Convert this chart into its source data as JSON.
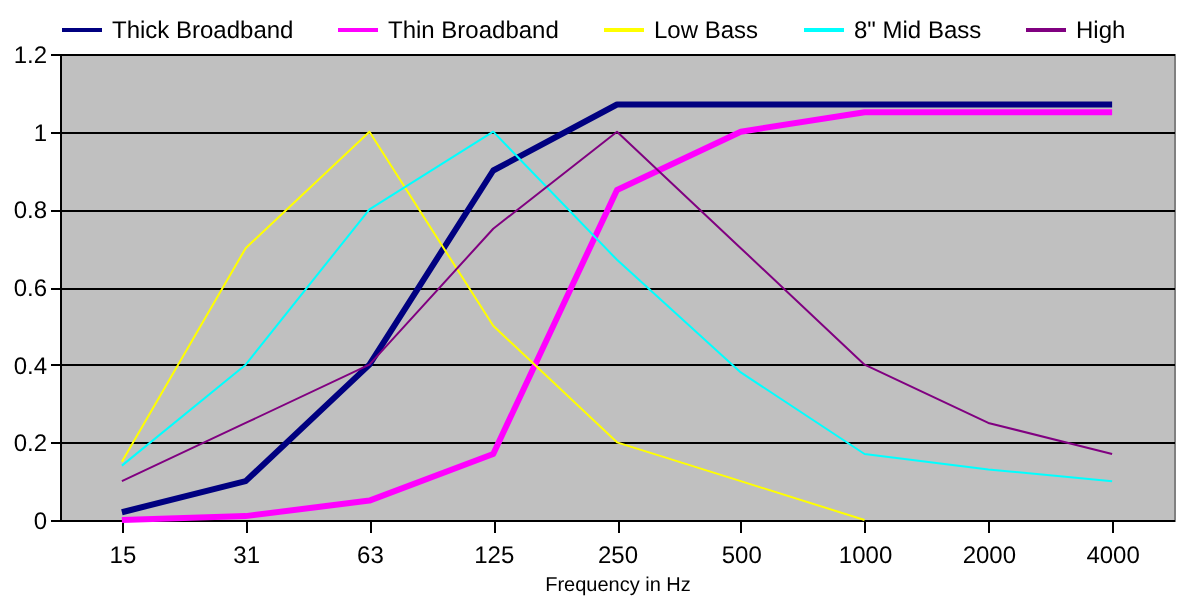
{
  "chart_data": {
    "type": "line",
    "xlabel": "Frequency in Hz",
    "categories": [
      "15",
      "31",
      "63",
      "125",
      "250",
      "500",
      "1000",
      "2000",
      "4000"
    ],
    "series": [
      {
        "name": "Thick Broadband",
        "color": "#000080",
        "values": [
          0.02,
          0.1,
          0.4,
          0.9,
          1.07,
          1.07,
          1.07,
          1.07,
          1.07
        ]
      },
      {
        "name": "Thin Broadband",
        "color": "#ff00ff",
        "values": [
          0.0,
          0.01,
          0.05,
          0.17,
          0.85,
          1.0,
          1.05,
          1.05,
          1.05
        ]
      },
      {
        "name": "Low Bass",
        "color": "#ffff00",
        "values": [
          0.15,
          0.7,
          1.0,
          0.5,
          0.2,
          0.1,
          0.0,
          null,
          null
        ]
      },
      {
        "name": "8\" Mid Bass",
        "color": "#00ffff",
        "values": [
          0.14,
          0.4,
          0.8,
          1.0,
          0.67,
          0.38,
          0.17,
          0.13,
          0.1
        ]
      },
      {
        "name": "High",
        "color": "#800080",
        "values": [
          0.1,
          0.25,
          0.4,
          0.75,
          1.0,
          0.7,
          0.4,
          0.25,
          0.17
        ]
      }
    ],
    "ylim": [
      0,
      1.2
    ],
    "yticks": [
      0,
      0.2,
      0.4,
      0.6,
      0.8,
      1,
      1.2
    ],
    "grid": "y",
    "legend": "top",
    "marker": "none",
    "line_style": "solid"
  }
}
